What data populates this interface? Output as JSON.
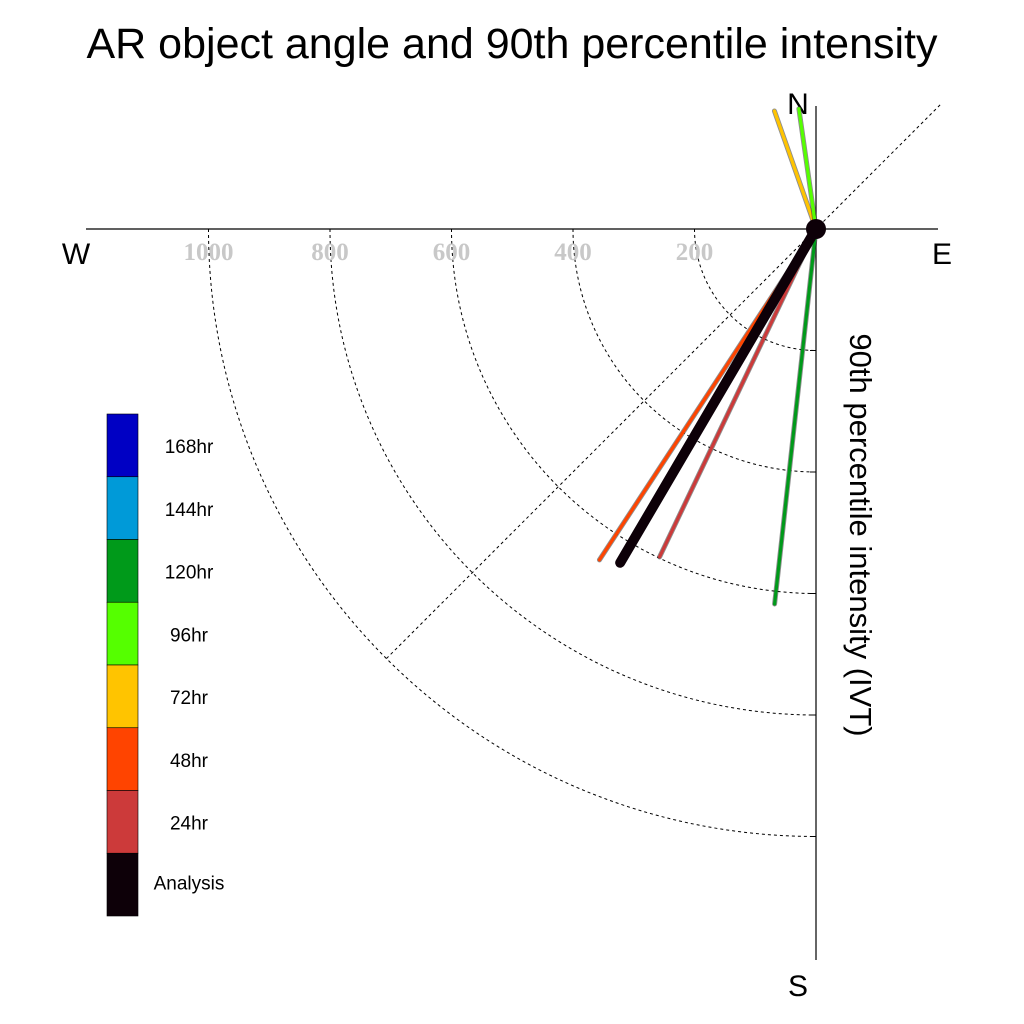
{
  "chart_data": {
    "type": "polar-vector",
    "title": "AR object angle and 90th percentile intensity",
    "ylabel": "90th percentile intensity (IVT)",
    "compass": {
      "north": "N",
      "south": "S",
      "east": "E",
      "west": "W"
    },
    "radial_ticks": [
      {
        "value": 200,
        "label": "200"
      },
      {
        "value": 400,
        "label": "400"
      },
      {
        "value": 600,
        "label": "600"
      },
      {
        "value": 800,
        "label": "800"
      },
      {
        "value": 1000,
        "label": "1000"
      }
    ],
    "radial_range": [
      0,
      1200
    ],
    "grid": true,
    "legend_position": "bottom-left",
    "legend": [
      {
        "label": "168hr",
        "color": "#0000c4"
      },
      {
        "label": "144hr",
        "color": "#009ad8"
      },
      {
        "label": "120hr",
        "color": "#009a1a"
      },
      {
        "label": "96hr",
        "color": "#55ff00"
      },
      {
        "label": "72hr",
        "color": "#ffc400"
      },
      {
        "label": "48hr",
        "color": "#ff4400"
      },
      {
        "label": "24hr",
        "color": "#cc3a3a"
      },
      {
        "label": "Analysis",
        "color": "#0d0008"
      }
    ],
    "series": [
      {
        "name": "72hr",
        "color": "#ffc400",
        "segments": [
          {
            "direction_deg": 340.6,
            "magnitude": 206
          }
        ]
      },
      {
        "name": "96hr",
        "color": "#55ff00",
        "segments": [
          {
            "direction_deg": 351.9,
            "magnitude": 200
          }
        ]
      },
      {
        "name": "24hr",
        "color": "#cc3a3a",
        "segments": [
          {
            "direction_deg": 205.5,
            "magnitude": 598
          }
        ]
      },
      {
        "name": "48hr",
        "color": "#ff4400",
        "segments": [
          {
            "direction_deg": 213.2,
            "magnitude": 651
          }
        ]
      },
      {
        "name": "120hr",
        "color": "#009a1a",
        "segments": [
          {
            "direction_deg": 186.3,
            "magnitude": 621
          }
        ]
      },
      {
        "name": "Analysis",
        "color": "#0d0008",
        "segments": [
          {
            "direction_deg": 210.4,
            "magnitude": 637
          }
        ]
      }
    ]
  }
}
